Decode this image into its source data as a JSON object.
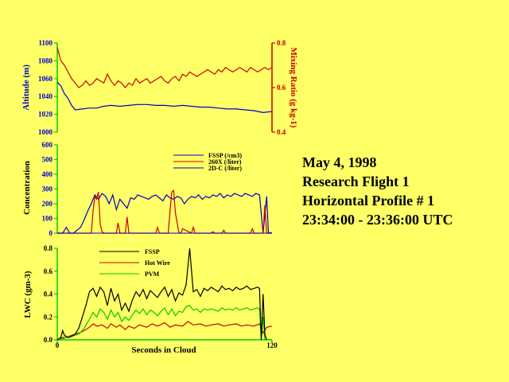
{
  "info": {
    "date": "May 4, 1998",
    "flight": "Research Flight 1",
    "profile": "Horizontal Profile # 1",
    "time": "23:34:00 - 23:36:00 UTC"
  },
  "chart_data": [
    {
      "type": "line",
      "panel": "altitude-mixing",
      "ylabel": "Altitude (m)",
      "y2label": "Mixing Ratio (g kg-1)",
      "ylim": [
        1000,
        1100
      ],
      "y2lim": [
        0.4,
        0.8
      ],
      "yticks": [
        "1000",
        "1020",
        "1040",
        "1060",
        "1080",
        "1100"
      ],
      "y2ticks": [
        "0.4",
        "0.6",
        "0.8"
      ],
      "xlim": [
        0,
        120
      ],
      "colors": {
        "altitude": "#0000cc",
        "mixing": "#cc0000",
        "axis": "#00cc00"
      },
      "series": [
        {
          "key": "altitude",
          "x": [
            0,
            2,
            4,
            6,
            8,
            10,
            14,
            18,
            22,
            26,
            30,
            35,
            40,
            45,
            50,
            55,
            60,
            65,
            70,
            75,
            80,
            85,
            90,
            95,
            100,
            105,
            110,
            115,
            120
          ],
          "values": [
            1056,
            1052,
            1043,
            1038,
            1030,
            1025,
            1026,
            1027,
            1027,
            1029,
            1030,
            1029,
            1030,
            1031,
            1031,
            1030,
            1030,
            1029,
            1030,
            1029,
            1028,
            1028,
            1027,
            1026,
            1026,
            1025,
            1024,
            1022,
            1023
          ]
        },
        {
          "key": "mixing",
          "x": [
            0,
            2,
            4,
            6,
            8,
            10,
            12,
            14,
            16,
            18,
            20,
            22,
            24,
            26,
            28,
            30,
            32,
            34,
            36,
            38,
            40,
            42,
            44,
            46,
            48,
            50,
            52,
            54,
            56,
            58,
            60,
            62,
            64,
            66,
            68,
            70,
            72,
            74,
            76,
            78,
            80,
            82,
            84,
            86,
            88,
            90,
            92,
            94,
            96,
            98,
            100,
            102,
            104,
            106,
            108,
            110,
            112,
            114,
            116,
            118,
            120
          ],
          "values": [
            0.78,
            0.72,
            0.7,
            0.67,
            0.64,
            0.62,
            0.6,
            0.61,
            0.63,
            0.61,
            0.62,
            0.64,
            0.63,
            0.62,
            0.66,
            0.63,
            0.61,
            0.63,
            0.62,
            0.6,
            0.62,
            0.61,
            0.64,
            0.62,
            0.63,
            0.64,
            0.62,
            0.63,
            0.64,
            0.65,
            0.63,
            0.62,
            0.64,
            0.65,
            0.63,
            0.66,
            0.65,
            0.67,
            0.66,
            0.65,
            0.66,
            0.67,
            0.68,
            0.67,
            0.66,
            0.68,
            0.67,
            0.69,
            0.68,
            0.67,
            0.68,
            0.69,
            0.68,
            0.67,
            0.69,
            0.68,
            0.67,
            0.68,
            0.69,
            0.68,
            0.69
          ]
        }
      ]
    },
    {
      "type": "line",
      "panel": "concentration",
      "ylabel": "Concentration",
      "ylim": [
        0,
        600
      ],
      "yticks": [
        "0",
        "100",
        "200",
        "300",
        "400",
        "500",
        "600"
      ],
      "xlim": [
        0,
        120
      ],
      "legend": [
        {
          "name": "FSSP (/cm3)",
          "color": "#0000cc"
        },
        {
          "name": "260X (/liter)",
          "color": "#cc0000"
        },
        {
          "name": "2D-C (/liter)",
          "color": "#0000cc"
        }
      ],
      "series": [
        {
          "key": "fssp",
          "color": "#0000cc",
          "x": [
            0,
            3,
            5,
            7,
            9,
            11,
            13,
            15,
            17,
            19,
            21,
            23,
            25,
            27,
            29,
            31,
            33,
            35,
            37,
            39,
            41,
            43,
            45,
            47,
            49,
            51,
            53,
            55,
            57,
            59,
            61,
            63,
            65,
            67,
            69,
            71,
            73,
            75,
            77,
            79,
            81,
            83,
            85,
            87,
            89,
            91,
            93,
            95,
            97,
            99,
            101,
            103,
            105,
            107,
            109,
            111,
            113,
            115,
            117,
            118,
            119,
            120
          ],
          "values": [
            0,
            0,
            40,
            0,
            0,
            20,
            40,
            90,
            150,
            200,
            260,
            230,
            270,
            250,
            200,
            260,
            160,
            230,
            200,
            170,
            240,
            230,
            260,
            250,
            240,
            230,
            250,
            260,
            240,
            220,
            260,
            240,
            230,
            250,
            240,
            200,
            230,
            250,
            240,
            260,
            230,
            250,
            240,
            260,
            250,
            270,
            240,
            260,
            250,
            270,
            260,
            250,
            270,
            260,
            250,
            270,
            260,
            0,
            250,
            0,
            5,
            0
          ],
          "clip_after": 114
        },
        {
          "key": "x260",
          "color": "#cc0000",
          "x": [
            0,
            19,
            20,
            21,
            22,
            23,
            24,
            25,
            26,
            33,
            34,
            35,
            38,
            39,
            40,
            55,
            56,
            57,
            62,
            63,
            64,
            65,
            66,
            68,
            69,
            70,
            75,
            76,
            77,
            86,
            87,
            88,
            92,
            93,
            94,
            108,
            109,
            110,
            115,
            116,
            117,
            120
          ],
          "values": [
            0,
            0,
            150,
            250,
            230,
            280,
            60,
            10,
            0,
            0,
            70,
            0,
            0,
            110,
            0,
            0,
            40,
            0,
            0,
            150,
            280,
            290,
            140,
            0,
            0,
            30,
            0,
            40,
            0,
            0,
            10,
            0,
            0,
            20,
            0,
            0,
            30,
            0,
            0,
            190,
            0,
            0
          ]
        },
        {
          "key": "twodc",
          "color": "#0000cc",
          "x": [
            0,
            120
          ],
          "values": [
            0,
            0
          ]
        }
      ]
    },
    {
      "type": "line",
      "panel": "lwc",
      "ylabel": "LWC (gm-3)",
      "xlabel": "Seconds in Cloud",
      "ylim": [
        0,
        0.8
      ],
      "yticks": [
        "0.0",
        "0.2",
        "0.4",
        "0.6",
        "0.8"
      ],
      "xlim": [
        0,
        120
      ],
      "xticks": [
        "0",
        "120"
      ],
      "legend": [
        {
          "name": "FSSP",
          "color": "#000000"
        },
        {
          "name": "Hot Wire",
          "color": "#cc0000"
        },
        {
          "name": "PVM",
          "color": "#00cc00"
        }
      ],
      "series": [
        {
          "key": "fssp_lwc",
          "color": "#000000",
          "x": [
            0,
            2,
            3,
            4,
            6,
            8,
            10,
            12,
            14,
            16,
            18,
            20,
            22,
            24,
            26,
            28,
            30,
            32,
            34,
            36,
            38,
            40,
            42,
            44,
            46,
            48,
            50,
            52,
            54,
            56,
            58,
            60,
            62,
            64,
            66,
            68,
            70,
            72,
            74,
            76,
            78,
            80,
            82,
            84,
            86,
            88,
            90,
            92,
            94,
            96,
            98,
            100,
            102,
            104,
            106,
            108,
            110,
            112,
            113,
            114,
            115,
            116,
            117
          ],
          "values": [
            0,
            0.02,
            0.08,
            0.04,
            0.02,
            0.03,
            0.05,
            0.1,
            0.2,
            0.3,
            0.42,
            0.45,
            0.38,
            0.46,
            0.42,
            0.3,
            0.45,
            0.34,
            0.4,
            0.26,
            0.32,
            0.25,
            0.35,
            0.42,
            0.38,
            0.44,
            0.36,
            0.43,
            0.4,
            0.37,
            0.42,
            0.46,
            0.38,
            0.44,
            0.34,
            0.41,
            0.39,
            0.48,
            0.8,
            0.42,
            0.44,
            0.38,
            0.45,
            0.43,
            0.46,
            0.44,
            0.42,
            0.47,
            0.44,
            0.45,
            0.43,
            0.46,
            0.44,
            0.45,
            0.47,
            0.44,
            0.45,
            0.46,
            0.45,
            0.0,
            0.4,
            0.05,
            0.0
          ]
        },
        {
          "key": "hotwire",
          "color": "#cc0000",
          "x": [
            0,
            3,
            5,
            8,
            12,
            15,
            18,
            20,
            22,
            25,
            28,
            30,
            33,
            35,
            38,
            40,
            43,
            46,
            50,
            53,
            56,
            60,
            63,
            66,
            70,
            73,
            76,
            80,
            83,
            86,
            90,
            93,
            96,
            100,
            103,
            106,
            110,
            113,
            115,
            117,
            120
          ],
          "values": [
            0,
            0.02,
            0.02,
            0.04,
            0.06,
            0.08,
            0.11,
            0.14,
            0.12,
            0.13,
            0.1,
            0.14,
            0.11,
            0.13,
            0.09,
            0.12,
            0.1,
            0.13,
            0.11,
            0.14,
            0.12,
            0.15,
            0.11,
            0.13,
            0.12,
            0.16,
            0.13,
            0.14,
            0.12,
            0.13,
            0.14,
            0.12,
            0.13,
            0.14,
            0.12,
            0.13,
            0.12,
            0.14,
            0.06,
            0.11,
            0.12
          ]
        },
        {
          "key": "pvm",
          "color": "#00cc00",
          "x": [
            0,
            3,
            5,
            8,
            12,
            15,
            18,
            20,
            22,
            24,
            26,
            28,
            30,
            32,
            34,
            36,
            38,
            40,
            42,
            44,
            46,
            48,
            50,
            52,
            54,
            56,
            58,
            60,
            62,
            64,
            66,
            68,
            70,
            72,
            74,
            76,
            78,
            80,
            82,
            84,
            86,
            88,
            90,
            92,
            94,
            96,
            98,
            100,
            102,
            104,
            106,
            108,
            110,
            112,
            113,
            114,
            115,
            116,
            117,
            120
          ],
          "values": [
            0,
            0.01,
            0.02,
            0.03,
            0.05,
            0.1,
            0.18,
            0.24,
            0.2,
            0.27,
            0.24,
            0.18,
            0.26,
            0.2,
            0.24,
            0.16,
            0.2,
            0.17,
            0.22,
            0.26,
            0.23,
            0.27,
            0.22,
            0.26,
            0.24,
            0.21,
            0.25,
            0.28,
            0.22,
            0.27,
            0.21,
            0.25,
            0.24,
            0.29,
            0.3,
            0.26,
            0.27,
            0.24,
            0.27,
            0.26,
            0.27,
            0.26,
            0.25,
            0.28,
            0.26,
            0.27,
            0.26,
            0.28,
            0.26,
            0.27,
            0.28,
            0.26,
            0.27,
            0.28,
            0.27,
            0.0,
            0.2,
            0.0,
            0.0,
            0.0
          ]
        }
      ]
    }
  ]
}
